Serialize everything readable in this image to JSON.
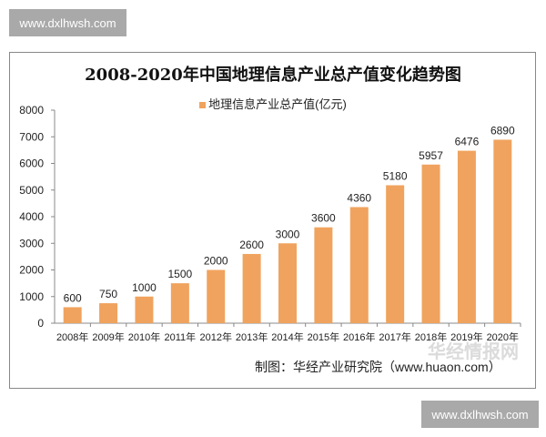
{
  "watermark": "www.dxlhwsh.com",
  "huaon_watermark": "华经情报网",
  "source": "制图：华经产业研究院（www.huaon.com）",
  "chart_data": {
    "type": "bar",
    "title": "2008-2020年中国地理信息产业总产值变化趋势图",
    "categories": [
      "2008年",
      "2009年",
      "2010年",
      "2011年",
      "2012年",
      "2013年",
      "2014年",
      "2015年",
      "2016年",
      "2017年",
      "2018年",
      "2019年",
      "2020年"
    ],
    "series": [
      {
        "name": "地理信息产业总产值(亿元)",
        "values": [
          600,
          750,
          1000,
          1500,
          2000,
          2600,
          3000,
          3600,
          4360,
          5180,
          5957,
          6476,
          6890
        ]
      }
    ],
    "ylim": [
      0,
      8000
    ],
    "yticks": [
      0,
      1000,
      2000,
      3000,
      4000,
      5000,
      6000,
      7000,
      8000
    ],
    "grid": false,
    "legend": "top",
    "data_labels": true,
    "bar_color": "#F0A35E"
  }
}
